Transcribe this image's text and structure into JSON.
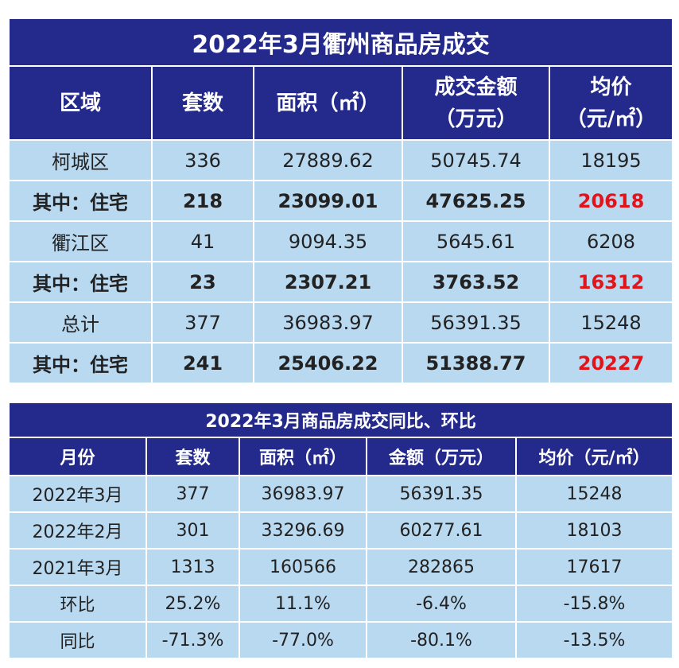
{
  "table1": {
    "title": "2022年3月衢州商品房成交",
    "header": [
      "区域",
      "套数",
      "面积（㎡）",
      "成交金额\n（万元）",
      "均价\n（元/㎡）"
    ],
    "rows": [
      [
        "柯城区",
        "336",
        "27889.62",
        "50745.74",
        "18195"
      ],
      [
        "其中：住宅",
        "218",
        "23099.01",
        "47625.25",
        "20618"
      ],
      [
        "衢江区",
        "41",
        "9094.35",
        "5645.61",
        "6208"
      ],
      [
        "其中：住宅",
        "23",
        "2307.21",
        "3763.52",
        "16312"
      ],
      [
        "总计",
        "377",
        "36983.97",
        "56391.35",
        "15248"
      ],
      [
        "其中：住宅",
        "241",
        "25406.22",
        "51388.77",
        "20227"
      ]
    ]
  },
  "table2": {
    "title": "2022年3月商品房成交同比、环比",
    "header": [
      "月份",
      "套数",
      "面积（㎡）",
      "金额（万元）",
      "均价（元/㎡）"
    ],
    "rows": [
      [
        "2022年3月",
        "377",
        "36983.97",
        "56391.35",
        "15248"
      ],
      [
        "2022年2月",
        "301",
        "33296.69",
        "60277.61",
        "18103"
      ],
      [
        "2021年3月",
        "1313",
        "160566",
        "282865",
        "17617"
      ],
      [
        "环比",
        "25.2%",
        "11.1%",
        "-6.4%",
        "-15.8%"
      ],
      [
        "同比",
        "-71.3%",
        "-77.0%",
        "-80.1%",
        "-13.5%"
      ]
    ]
  }
}
